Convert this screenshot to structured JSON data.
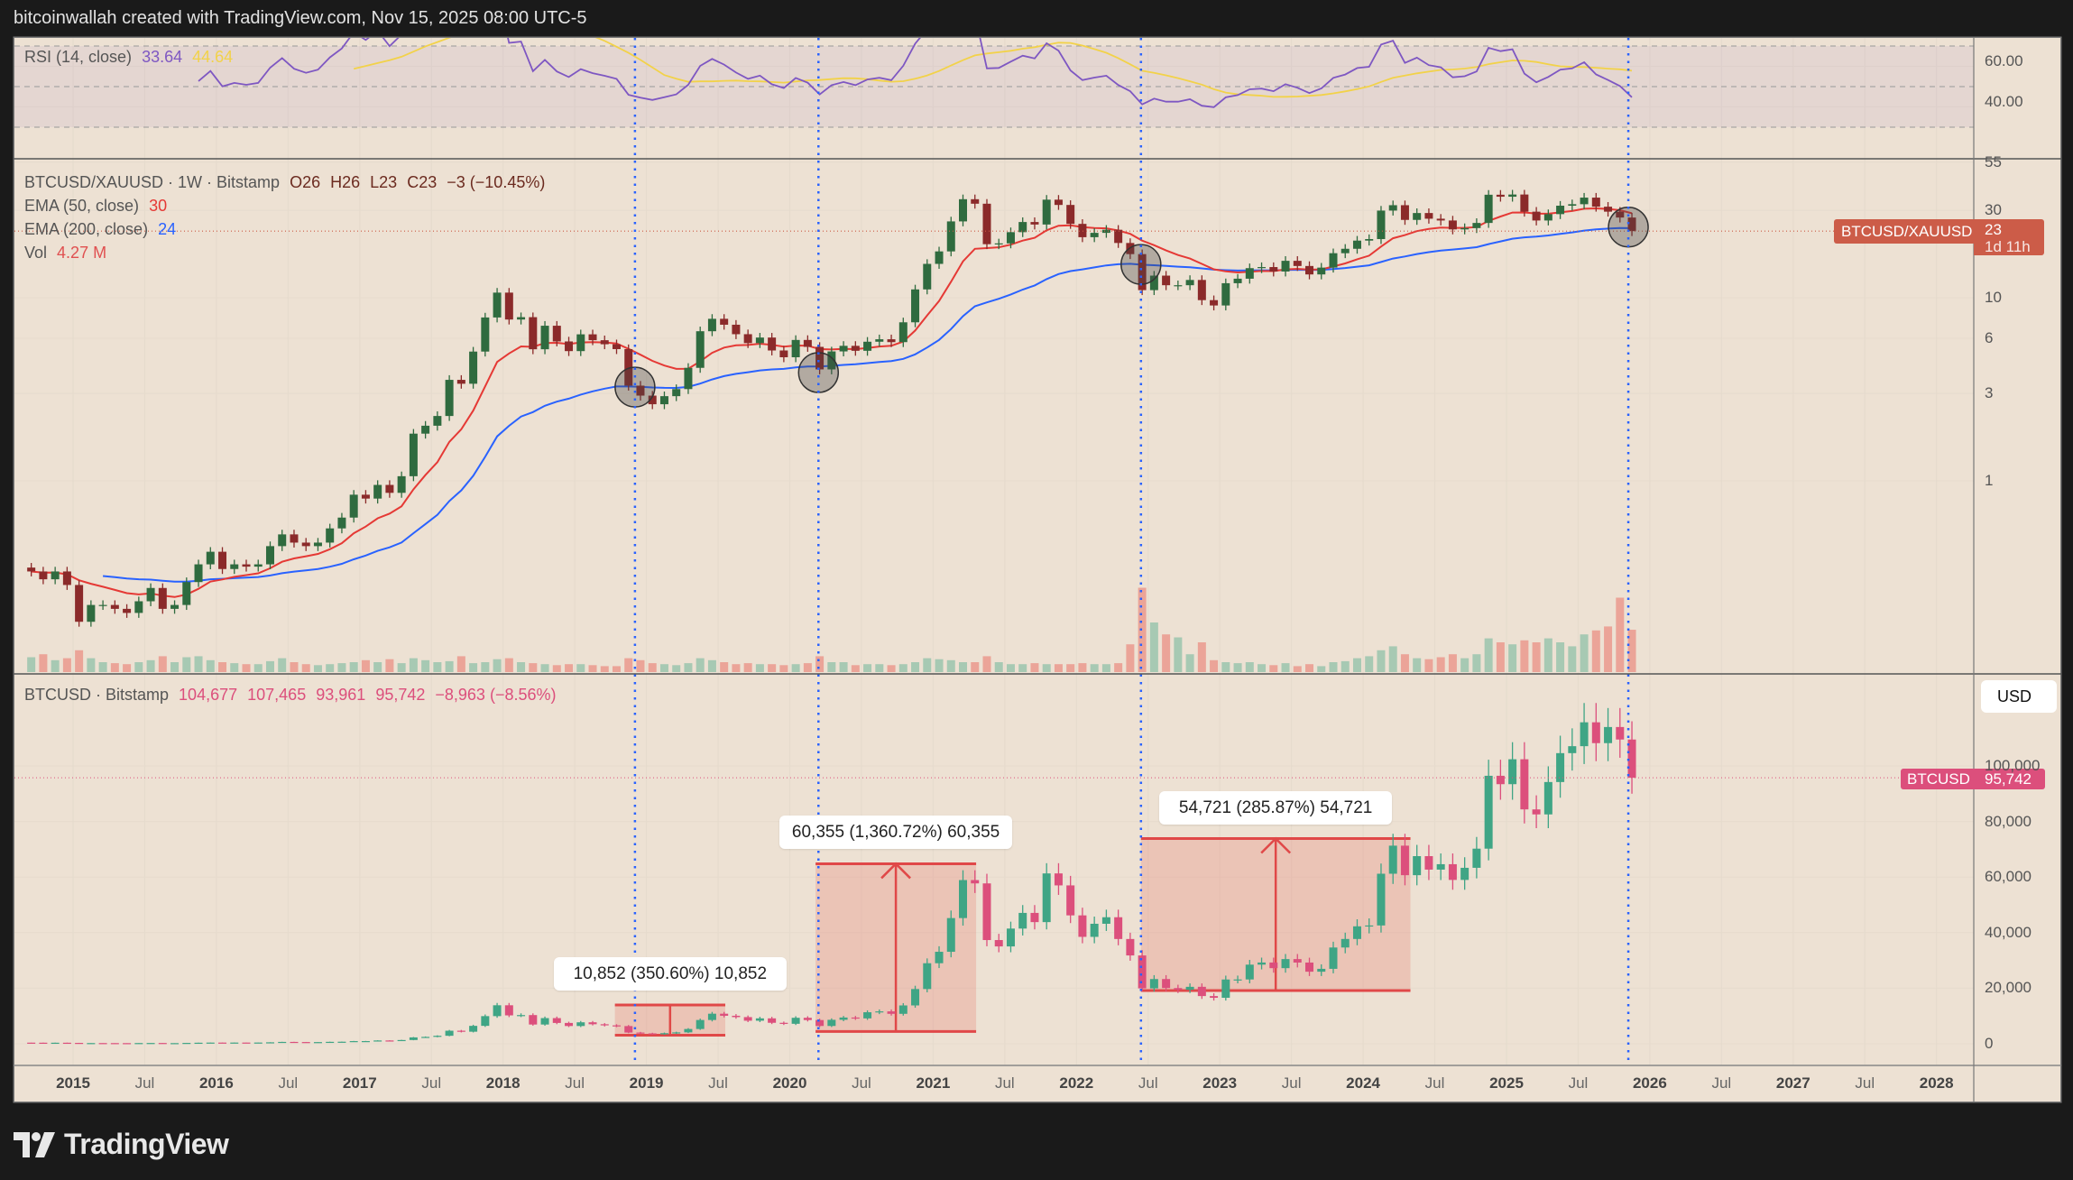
{
  "header": {
    "attribution": "bitcoinwallah created with TradingView.com, Nov 15, 2025 08:00 UTC-5"
  },
  "footer": {
    "logo_text": "TradingView",
    "logo_icon": "tradingview-logo-icon"
  },
  "rsi_legend": {
    "label": "RSI (14, close)",
    "value": "33.64",
    "ma_value": "44.64"
  },
  "ratio_legend": {
    "symbol": "BTCUSD/XAUUSD · 1W · Bitstamp",
    "open": "O26",
    "high": "H26",
    "low": "L23",
    "close": "C23",
    "change": "−3 (−10.45%)",
    "ema50_label": "EMA (50, close)",
    "ema50_value": "30",
    "ema200_label": "EMA (200, close)",
    "ema200_value": "24",
    "vol_label": "Vol",
    "vol_value": "4.27 M"
  },
  "btc_legend": {
    "symbol": "BTCUSD · Bitstamp",
    "open": "104,677",
    "high": "107,465",
    "low": "93,961",
    "close": "95,742",
    "change": "−8,963 (−8.56%)"
  },
  "price_badges": {
    "ratio_label": "BTCUSD/XAUUSD",
    "ratio_value": "23",
    "ratio_countdown": "1d 11h",
    "btc_label": "BTCUSD",
    "btc_value": "95,742"
  },
  "currency_button": "USD",
  "colors": {
    "background": "#ede1d3",
    "ema50": "#e53935",
    "ema200": "#2962ff",
    "rsi": "#7e57c2",
    "rsi_ma": "#f2d249",
    "btc_up": "#3fa585",
    "btc_down": "#dc4f7c",
    "ratio_up": "#2f6b3f",
    "ratio_down": "#8b2a2a",
    "ratio_badge": "#cc5c48",
    "btc_badge": "#dc4f7c",
    "measure": "#e04848",
    "marker_line": "#2962ff"
  },
  "chart_data": [
    {
      "type": "line",
      "pane": "rsi",
      "title": "RSI (14, close)",
      "series": [
        {
          "name": "RSI"
        },
        {
          "name": "RSI MA"
        }
      ],
      "ylim": [
        20,
        80
      ],
      "bands": [
        70,
        50,
        30
      ],
      "y_ticks": [
        {
          "label": "60.00",
          "v": 60
        },
        {
          "label": "40.00",
          "v": 40
        }
      ]
    },
    {
      "type": "candlestick",
      "pane": "ratio",
      "title": "BTCUSD/XAUUSD · 1W · Bitstamp",
      "scale": "log",
      "start": "2014-09",
      "interval": "monthly (approx.)",
      "closes": [
        0.32,
        0.29,
        0.32,
        0.27,
        0.17,
        0.21,
        0.21,
        0.2,
        0.19,
        0.22,
        0.26,
        0.2,
        0.21,
        0.28,
        0.35,
        0.41,
        0.33,
        0.35,
        0.34,
        0.35,
        0.44,
        0.51,
        0.46,
        0.44,
        0.46,
        0.55,
        0.63,
        0.84,
        0.8,
        0.95,
        0.86,
        1.06,
        1.81,
        2.0,
        2.26,
        3.56,
        3.39,
        5.08,
        7.8,
        10.66,
        7.6,
        7.83,
        5.23,
        7.03,
        5.77,
        5.11,
        6.31,
        5.86,
        5.57,
        5.24,
        3.31,
        2.92,
        2.62,
        2.9,
        3.17,
        4.14,
        6.56,
        7.67,
        7.12,
        6.32,
        5.65,
        6.06,
        5.15,
        4.73,
        5.88,
        5.39,
        4.06,
        5.09,
        5.46,
        5.13,
        5.75,
        5.93,
        5.72,
        7.34,
        11.1,
        15.3,
        17.9,
        26.1,
        34.5,
        32.6,
        19.6,
        19.8,
        22.8,
        25.9,
        25.1,
        34.3,
        32.1,
        25.3,
        21.4,
        22.6,
        23.5,
        19.9,
        17.3,
        11.0,
        13.2,
        11.7,
        11.7,
        12.5,
        9.7,
        9.07,
        12.0,
        12.7,
        14.5,
        14.7,
        13.9,
        15.9,
        14.9,
        13.4,
        14.6,
        17.5,
        18.5,
        20.5,
        20.9,
        29.9,
        32.0,
        26.6,
        29.0,
        27.0,
        26.4,
        23.6,
        24.0,
        25.6,
        36.5,
        35.6,
        36.6,
        29.5,
        26.4,
        28.6,
        31.8,
        32.4,
        35.2,
        31.4,
        29.5,
        27.4,
        23.1
      ],
      "volume_millions": [
        1.5,
        1.8,
        1.2,
        1.4,
        2.2,
        1.4,
        1.0,
        0.9,
        0.8,
        1.0,
        1.2,
        1.6,
        1.0,
        1.5,
        1.6,
        1.2,
        1.0,
        0.9,
        0.8,
        0.8,
        1.1,
        1.4,
        1.0,
        0.8,
        0.7,
        0.8,
        0.9,
        1.0,
        1.2,
        1.0,
        1.3,
        0.9,
        1.4,
        1.2,
        1.0,
        1.1,
        1.6,
        0.9,
        1.0,
        1.3,
        1.4,
        1.0,
        0.9,
        0.8,
        0.7,
        0.8,
        0.8,
        0.7,
        0.6,
        0.6,
        1.4,
        1.2,
        0.9,
        0.8,
        0.7,
        0.9,
        1.4,
        1.2,
        1.0,
        0.8,
        0.9,
        0.8,
        0.8,
        0.7,
        0.8,
        0.9,
        1.6,
        1.0,
        1.0,
        0.7,
        0.8,
        0.8,
        0.7,
        0.8,
        1.0,
        1.4,
        1.3,
        1.2,
        1.0,
        1.0,
        1.6,
        1.0,
        0.8,
        0.8,
        0.9,
        0.8,
        0.8,
        0.8,
        0.9,
        0.8,
        0.8,
        0.9,
        2.8,
        8.5,
        5.0,
        3.8,
        3.5,
        1.8,
        3.0,
        1.2,
        1.0,
        0.9,
        1.0,
        0.8,
        0.7,
        0.9,
        0.6,
        0.8,
        0.6,
        1.0,
        1.1,
        1.4,
        1.6,
        2.2,
        2.6,
        1.8,
        1.4,
        1.3,
        1.5,
        1.8,
        1.4,
        1.8,
        3.4,
        3.0,
        2.8,
        3.2,
        3.0,
        3.4,
        3.0,
        2.6,
        3.8,
        4.2,
        4.6,
        7.5,
        4.27
      ],
      "series": [
        {
          "name": "EMA (50, close)"
        },
        {
          "name": "EMA (200, close)"
        }
      ],
      "y_ticks": [
        {
          "label": "55",
          "v": 55
        },
        {
          "label": "30",
          "v": 30
        },
        {
          "label": "10",
          "v": 10
        },
        {
          "label": "6",
          "v": 6
        },
        {
          "label": "3",
          "v": 3
        },
        {
          "label": "1",
          "v": 1
        }
      ],
      "highlight_circles": [
        {
          "date": 2018.92,
          "v": 3.25
        },
        {
          "date": 2020.2,
          "v": 3.9
        },
        {
          "date": 2022.45,
          "v": 15.2
        },
        {
          "date": 2025.85,
          "v": 24.3
        }
      ]
    },
    {
      "type": "candlestick",
      "pane": "btc",
      "title": "BTCUSD · Bitstamp",
      "scale": "linear",
      "start": "2014-09",
      "interval": "monthly (approx.)",
      "ylim": [
        -2000,
        130000
      ],
      "closes": [
        386,
        338,
        378,
        320,
        218,
        254,
        244,
        236,
        230,
        263,
        284,
        230,
        236,
        314,
        378,
        430,
        369,
        437,
        416,
        448,
        531,
        673,
        624,
        575,
        609,
        700,
        742,
        964,
        970,
        1190,
        1080,
        1348,
        2300,
        2480,
        2875,
        4700,
        4340,
        6450,
        9950,
        13860,
        10220,
        10330,
        6930,
        9240,
        7500,
        6390,
        7730,
        7030,
        6630,
        6370,
        4040,
        3740,
        3460,
        3810,
        4100,
        5320,
        8560,
        10820,
        10080,
        9600,
        8300,
        9150,
        7550,
        7190,
        9350,
        8540,
        6410,
        8630,
        9450,
        9140,
        11350,
        11660,
        10780,
        13800,
        19700,
        28990,
        33110,
        45240,
        58920,
        57720,
        37330,
        35040,
        41460,
        47100,
        43790,
        61310,
        57000,
        46210,
        38480,
        43190,
        45540,
        37710,
        31790,
        19940,
        23300,
        20050,
        19430,
        20500,
        17170,
        16550,
        23140,
        23150,
        28480,
        29250,
        27220,
        30480,
        29230,
        25940,
        26970,
        34650,
        37720,
        42270,
        42580,
        61200,
        71300,
        60670,
        67530,
        62680,
        64630,
        58970,
        63330,
        70220,
        96450,
        93430,
        102400,
        84350,
        82550,
        94200,
        104600,
        107100,
        115700,
        108200,
        114000,
        109500,
        95742
      ],
      "y_ticks": [
        {
          "label": "100,000",
          "v": 100000
        },
        {
          "label": "80,000",
          "v": 80000
        },
        {
          "label": "60,000",
          "v": 60000
        },
        {
          "label": "40,000",
          "v": 40000
        },
        {
          "label": "20,000",
          "v": 20000
        },
        {
          "label": "0",
          "v": 0
        }
      ],
      "measurements": [
        {
          "label": "10,852 (350.60%) 10,852",
          "from_date": 2018.78,
          "to_date": 2019.55,
          "low": 3095,
          "high": 13947
        },
        {
          "label": "60,355 (1,360.72%) 60,355",
          "from_date": 2020.18,
          "to_date": 2021.3,
          "low": 4436,
          "high": 64791
        },
        {
          "label": "54,721 (285.87%) 54,721",
          "from_date": 2022.45,
          "to_date": 2024.33,
          "low": 19142,
          "high": 73863
        }
      ]
    }
  ],
  "time_axis": {
    "ticks": [
      {
        "label": "2015",
        "t": 2015.0,
        "major": true
      },
      {
        "label": "Jul",
        "t": 2015.5
      },
      {
        "label": "2016",
        "t": 2016.0,
        "major": true
      },
      {
        "label": "Jul",
        "t": 2016.5
      },
      {
        "label": "2017",
        "t": 2017.0,
        "major": true
      },
      {
        "label": "Jul",
        "t": 2017.5
      },
      {
        "label": "2018",
        "t": 2018.0,
        "major": true
      },
      {
        "label": "Jul",
        "t": 2018.5
      },
      {
        "label": "2019",
        "t": 2019.0,
        "major": true
      },
      {
        "label": "Jul",
        "t": 2019.5
      },
      {
        "label": "2020",
        "t": 2020.0,
        "major": true
      },
      {
        "label": "Jul",
        "t": 2020.5
      },
      {
        "label": "2021",
        "t": 2021.0,
        "major": true
      },
      {
        "label": "Jul",
        "t": 2021.5
      },
      {
        "label": "2022",
        "t": 2022.0,
        "major": true
      },
      {
        "label": "Jul",
        "t": 2022.5
      },
      {
        "label": "2023",
        "t": 2023.0,
        "major": true
      },
      {
        "label": "Jul",
        "t": 2023.5
      },
      {
        "label": "2024",
        "t": 2024.0,
        "major": true
      },
      {
        "label": "Jul",
        "t": 2024.5
      },
      {
        "label": "2025",
        "t": 2025.0,
        "major": true
      },
      {
        "label": "Jul",
        "t": 2025.5
      },
      {
        "label": "2026",
        "t": 2026.0,
        "major": true
      },
      {
        "label": "Jul",
        "t": 2026.5
      },
      {
        "label": "2027",
        "t": 2027.0,
        "major": true
      },
      {
        "label": "Jul",
        "t": 2027.5
      },
      {
        "label": "2028",
        "t": 2028.0,
        "major": true
      }
    ],
    "marker_dates": [
      2018.92,
      2020.2,
      2022.45,
      2025.85
    ]
  }
}
